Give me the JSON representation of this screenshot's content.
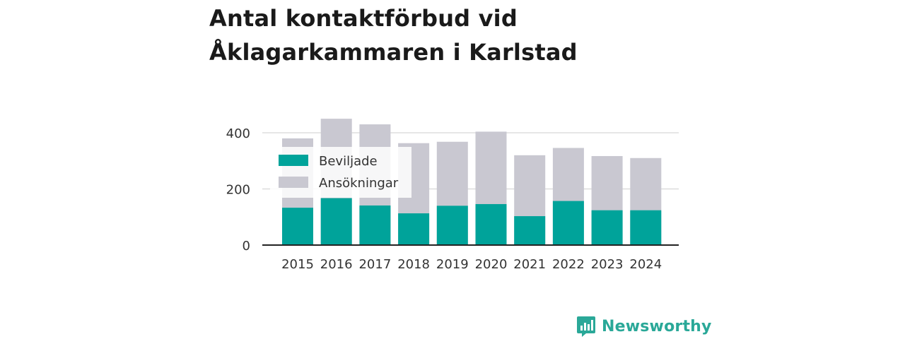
{
  "title_lines": [
    "Antal kontaktförbud vid",
    "Åklagarkammaren i Karlstad"
  ],
  "brand": "Newsworthy",
  "colors": {
    "beviljade": "#00a39a",
    "ansokningar": "#c9c8d1",
    "axis": "#222222",
    "grid": "#dddddd",
    "brand": "#2aa898"
  },
  "chart_data": {
    "type": "bar",
    "title": "Antal kontaktförbud vid Åklagarkammaren i Karlstad",
    "categories": [
      "2015",
      "2016",
      "2017",
      "2018",
      "2019",
      "2020",
      "2021",
      "2022",
      "2023",
      "2024"
    ],
    "series": [
      {
        "name": "Ansökningar",
        "values": [
          380,
          450,
          430,
          363,
          368,
          404,
          320,
          346,
          317,
          310
        ]
      },
      {
        "name": "Beviljade",
        "values": [
          133,
          167,
          141,
          113,
          140,
          146,
          103,
          157,
          124,
          124
        ]
      }
    ],
    "overlay": true,
    "ylim": [
      0,
      450
    ],
    "yticks": [
      0,
      200,
      400
    ],
    "grid": true,
    "legend": {
      "position": "top-left",
      "entries": [
        "Beviljade",
        "Ansökningar"
      ]
    },
    "xlabel": "",
    "ylabel": ""
  }
}
